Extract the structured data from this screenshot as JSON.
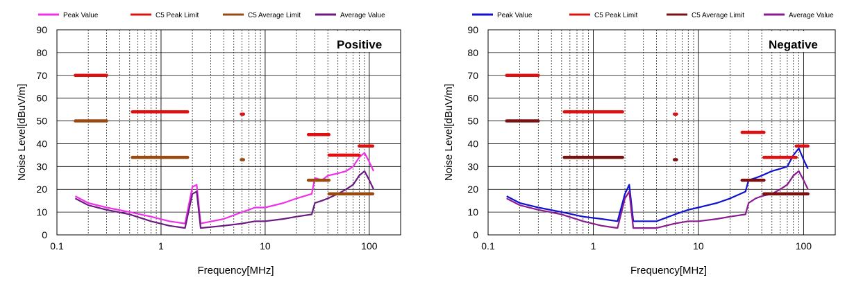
{
  "chart_data": [
    {
      "type": "line",
      "title": "Positive",
      "xlabel": "Frequency[MHz]",
      "ylabel": "Noise Level[dBuV/m]",
      "xscale": "log",
      "xlim": [
        0.1,
        200
      ],
      "ylim": [
        0,
        90
      ],
      "xticks": [
        0.1,
        1,
        10,
        100
      ],
      "xtick_labels": [
        "0.1",
        "1",
        "10",
        "100"
      ],
      "yticks": [
        0,
        10,
        20,
        30,
        40,
        50,
        60,
        70,
        80,
        90
      ],
      "ytick_labels": [
        "0",
        "10",
        "20",
        "30",
        "40",
        "50",
        "60",
        "70",
        "80",
        "90"
      ],
      "grid": true,
      "legend": [
        {
          "name": "Peak Value",
          "color": "#f030e8"
        },
        {
          "name": "C5 Peak Limit",
          "color": "#e01010"
        },
        {
          "name": "C5 Average Limit",
          "color": "#9a4a10"
        },
        {
          "name": "Average Value",
          "color": "#6a1a80"
        }
      ],
      "series": [
        {
          "name": "Peak Value",
          "color": "#f030e8",
          "x": [
            0.15,
            0.2,
            0.3,
            0.5,
            0.8,
            1.2,
            1.7,
            2.0,
            2.2,
            2.4,
            4,
            6,
            8,
            10,
            15,
            20,
            28,
            30,
            35,
            40,
            50,
            60,
            70,
            80,
            90,
            100,
            110
          ],
          "y": [
            17,
            14,
            12,
            10,
            8,
            6,
            5,
            21,
            22,
            5,
            7,
            10,
            12,
            12,
            14,
            16,
            18,
            25,
            24,
            26,
            27,
            28,
            30,
            34,
            36,
            32,
            28
          ]
        },
        {
          "name": "Average Value",
          "color": "#6a1a80",
          "x": [
            0.15,
            0.2,
            0.3,
            0.5,
            0.8,
            1.2,
            1.7,
            2.0,
            2.2,
            2.4,
            4,
            6,
            8,
            10,
            15,
            20,
            28,
            30,
            35,
            40,
            50,
            60,
            70,
            80,
            90,
            100,
            110
          ],
          "y": [
            16,
            13,
            11,
            9,
            6,
            4,
            3,
            18,
            19,
            3,
            4,
            5,
            6,
            6,
            7,
            8,
            9,
            14,
            15,
            16,
            18,
            20,
            22,
            26,
            28,
            24,
            20
          ]
        }
      ],
      "limits": [
        {
          "name": "C5 Peak Limit",
          "color": "#e01010",
          "segments": [
            {
              "x": [
                0.15,
                0.3
              ],
              "y": 70
            },
            {
              "x": [
                0.53,
                1.8
              ],
              "y": 54
            },
            {
              "x": [
                5.9,
                6.2
              ],
              "y": 53
            },
            {
              "x": [
                26,
                30
              ],
              "y": 44
            },
            {
              "x": [
                30,
                41
              ],
              "y": 44
            },
            {
              "x": [
                41,
                80
              ],
              "y": 35
            },
            {
              "x": [
                80,
                108
              ],
              "y": 39
            }
          ]
        },
        {
          "name": "C5 Average Limit",
          "color": "#9a4a10",
          "segments": [
            {
              "x": [
                0.15,
                0.3
              ],
              "y": 50
            },
            {
              "x": [
                0.53,
                1.8
              ],
              "y": 34
            },
            {
              "x": [
                5.9,
                6.2
              ],
              "y": 33
            },
            {
              "x": [
                26,
                30
              ],
              "y": 24
            },
            {
              "x": [
                30,
                41
              ],
              "y": 24
            },
            {
              "x": [
                41,
                80
              ],
              "y": 18
            },
            {
              "x": [
                80,
                108
              ],
              "y": 18
            }
          ]
        }
      ]
    },
    {
      "type": "line",
      "title": "Negative",
      "xlabel": "Frequency[MHz]",
      "ylabel": "Noise Level[dBuV/m]",
      "xscale": "log",
      "xlim": [
        0.1,
        200
      ],
      "ylim": [
        0,
        90
      ],
      "xticks": [
        0.1,
        1,
        10,
        100
      ],
      "xtick_labels": [
        "0.1",
        "1",
        "10",
        "100"
      ],
      "yticks": [
        0,
        10,
        20,
        30,
        40,
        50,
        60,
        70,
        80,
        90
      ],
      "ytick_labels": [
        "0",
        "10",
        "20",
        "30",
        "40",
        "50",
        "60",
        "70",
        "80",
        "90"
      ],
      "grid": true,
      "legend": [
        {
          "name": "Peak Value",
          "color": "#1010d0"
        },
        {
          "name": "C5 Peak Limit",
          "color": "#e01010"
        },
        {
          "name": "C5 Average Limit",
          "color": "#7a1010"
        },
        {
          "name": "Average Value",
          "color": "#8a1a90"
        }
      ],
      "series": [
        {
          "name": "Peak Value",
          "color": "#1010d0",
          "x": [
            0.15,
            0.2,
            0.3,
            0.5,
            0.8,
            1.2,
            1.7,
            2.0,
            2.2,
            2.4,
            4,
            6,
            8,
            10,
            15,
            20,
            28,
            30,
            35,
            40,
            50,
            60,
            70,
            80,
            90,
            100,
            110
          ],
          "y": [
            17,
            14,
            12,
            10,
            8,
            7,
            6,
            18,
            22,
            6,
            6,
            9,
            11,
            12,
            14,
            16,
            19,
            24,
            25,
            26,
            28,
            29,
            30,
            35,
            38,
            33,
            29
          ]
        },
        {
          "name": "Average Value",
          "color": "#8a1a90",
          "x": [
            0.15,
            0.2,
            0.3,
            0.5,
            0.8,
            1.2,
            1.7,
            2.0,
            2.2,
            2.4,
            4,
            6,
            8,
            10,
            15,
            20,
            28,
            30,
            35,
            40,
            50,
            60,
            70,
            80,
            90,
            100,
            110
          ],
          "y": [
            16,
            13,
            11,
            9,
            6,
            4,
            3,
            16,
            19,
            3,
            3,
            5,
            6,
            6,
            7,
            8,
            9,
            14,
            16,
            17,
            18,
            20,
            22,
            26,
            28,
            24,
            20
          ]
        }
      ],
      "limits": [
        {
          "name": "C5 Peak Limit",
          "color": "#e01010",
          "segments": [
            {
              "x": [
                0.15,
                0.3
              ],
              "y": 70
            },
            {
              "x": [
                0.53,
                1.9
              ],
              "y": 54
            },
            {
              "x": [
                5.9,
                6.2
              ],
              "y": 53
            },
            {
              "x": [
                26,
                30
              ],
              "y": 45
            },
            {
              "x": [
                30,
                42
              ],
              "y": 45
            },
            {
              "x": [
                42,
                85
              ],
              "y": 34
            },
            {
              "x": [
                85,
                110
              ],
              "y": 39
            }
          ]
        },
        {
          "name": "C5 Average Limit",
          "color": "#7a1010",
          "segments": [
            {
              "x": [
                0.15,
                0.3
              ],
              "y": 50
            },
            {
              "x": [
                0.53,
                1.9
              ],
              "y": 34
            },
            {
              "x": [
                5.9,
                6.2
              ],
              "y": 33
            },
            {
              "x": [
                26,
                30
              ],
              "y": 24
            },
            {
              "x": [
                30,
                42
              ],
              "y": 24
            },
            {
              "x": [
                42,
                85
              ],
              "y": 18
            },
            {
              "x": [
                85,
                110
              ],
              "y": 18
            }
          ]
        }
      ]
    }
  ]
}
